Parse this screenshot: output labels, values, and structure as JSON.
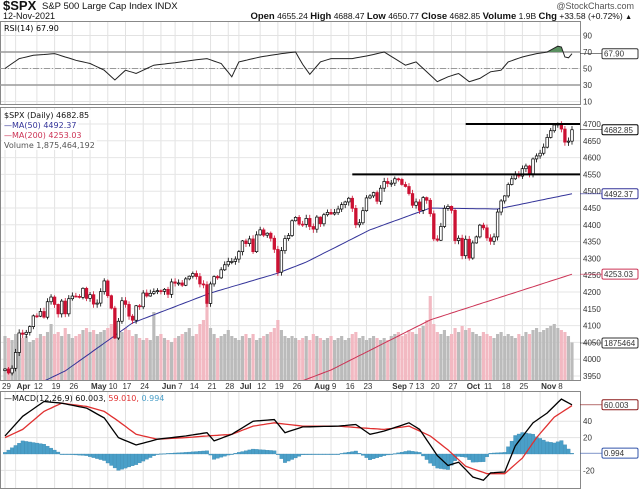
{
  "header": {
    "symbol": "$SPX",
    "name": "S&P 500 Large Cap Index",
    "exchange": "INDX",
    "watermark": "@StockCharts.com",
    "date": "12-Nov-2021",
    "open_label": "Open",
    "open": "4655.24",
    "high_label": "High",
    "high": "4688.47",
    "low_label": "Low",
    "low": "4650.77",
    "close_label": "Close",
    "close": "4682.85",
    "volume_label": "Volume",
    "volume": "1.9B",
    "chg_label": "Chg",
    "chg": "+33.58 (+0.72%)",
    "chg_icon": "up-triangle-icon"
  },
  "colors": {
    "up": "#ffffff",
    "down": "#cc1133",
    "ma50": "#333399",
    "ma200": "#cc3355",
    "vol_up": "#bbbbbb",
    "vol_down": "#f2b9c2",
    "macd": "#000000",
    "signal": "#e03030",
    "hist": "#4a9fc8",
    "rsi_over": "#5a9060"
  },
  "chart_data": [
    {
      "type": "line",
      "panel": "rsi",
      "legend": "RSI(14) 67.90",
      "last_label": "67.90",
      "yticks": [
        10,
        30,
        50,
        70,
        90
      ],
      "reference_lines": [
        30,
        50,
        70
      ],
      "points": [
        [
          0,
          50
        ],
        [
          4,
          62
        ],
        [
          8,
          66
        ],
        [
          14,
          68
        ],
        [
          20,
          60
        ],
        [
          24,
          56
        ],
        [
          28,
          48
        ],
        [
          31,
          36
        ],
        [
          34,
          48
        ],
        [
          37,
          44
        ],
        [
          42,
          54
        ],
        [
          48,
          57
        ],
        [
          53,
          60
        ],
        [
          57,
          62
        ],
        [
          61,
          56
        ],
        [
          64,
          40
        ],
        [
          66,
          58
        ],
        [
          72,
          64
        ],
        [
          78,
          68
        ],
        [
          82,
          70
        ],
        [
          84,
          55
        ],
        [
          86,
          43
        ],
        [
          89,
          58
        ],
        [
          92,
          62
        ],
        [
          98,
          62
        ],
        [
          103,
          66
        ],
        [
          107,
          70
        ],
        [
          110,
          62
        ],
        [
          113,
          54
        ],
        [
          116,
          58
        ],
        [
          119,
          46
        ],
        [
          122,
          34
        ],
        [
          125,
          40
        ],
        [
          128,
          44
        ],
        [
          131,
          34
        ],
        [
          134,
          38
        ],
        [
          137,
          46
        ],
        [
          140,
          48
        ],
        [
          142,
          58
        ],
        [
          146,
          64
        ],
        [
          150,
          68
        ],
        [
          153,
          70
        ],
        [
          156,
          77
        ],
        [
          157,
          76
        ],
        [
          158,
          64
        ],
        [
          159,
          63
        ],
        [
          160,
          67.9
        ]
      ]
    },
    {
      "type": "candlestick",
      "panel": "price",
      "legend": "$SPX (Daily) 4682.85",
      "ma50_legend": "MA(50) 4492.37",
      "ma200_legend": "MA(200) 4253.03",
      "volume_legend": "Volume 1,875,464,192",
      "last_labels": {
        "close": "4682.85",
        "ma50": "4492.37",
        "ma200": "4253.03",
        "volume": "1875464"
      },
      "yticks": [
        3950,
        4000,
        4050,
        4100,
        4150,
        4200,
        4250,
        4300,
        4350,
        4400,
        4450,
        4500,
        4550,
        4600,
        4650,
        4700
      ],
      "ylim": [
        3940,
        4745
      ],
      "closes": [
        3971,
        3959,
        3973,
        4020,
        4078,
        4074,
        4080,
        4097,
        4129,
        4128,
        4142,
        4125,
        4171,
        4185,
        4163,
        4135,
        4173,
        4135,
        4180,
        4188,
        4187,
        4184,
        4211,
        4181,
        4192,
        4164,
        4167,
        4201,
        4233,
        4189,
        4152,
        4063,
        4113,
        4174,
        4163,
        4128,
        4116,
        4159,
        4156,
        4197,
        4188,
        4196,
        4201,
        4204,
        4202,
        4208,
        4193,
        4230,
        4226,
        4227,
        4220,
        4239,
        4247,
        4255,
        4246,
        4224,
        4222,
        4166,
        4224,
        4246,
        4242,
        4266,
        4281,
        4291,
        4291,
        4298,
        4320,
        4352,
        4344,
        4358,
        4320,
        4370,
        4385,
        4369,
        4375,
        4360,
        4327,
        4259,
        4323,
        4359,
        4368,
        4412,
        4422,
        4402,
        4401,
        4419,
        4395,
        4387,
        4423,
        4403,
        4430,
        4437,
        4432,
        4436,
        4447,
        4460,
        4468,
        4479,
        4449,
        4400,
        4406,
        4442,
        4480,
        4486,
        4496,
        4470,
        4509,
        4529,
        4523,
        4524,
        4537,
        4535,
        4520,
        4514,
        4493,
        4458,
        4468,
        4443,
        4481,
        4473,
        4433,
        4358,
        4354,
        4395,
        4449,
        4455,
        4443,
        4353,
        4360,
        4308,
        4357,
        4301,
        4346,
        4364,
        4399,
        4391,
        4361,
        4351,
        4364,
        4438,
        4471,
        4486,
        4520,
        4537,
        4549,
        4545,
        4567,
        4575,
        4552,
        4596,
        4605,
        4613,
        4631,
        4660,
        4680,
        4697,
        4702,
        4685,
        4646,
        4649,
        4682.85
      ],
      "ma50_points": [
        [
          0,
          3880
        ],
        [
          17,
          3965
        ],
        [
          36,
          4108
        ],
        [
          58,
          4197
        ],
        [
          77,
          4256
        ],
        [
          85,
          4289
        ],
        [
          103,
          4385
        ],
        [
          120,
          4450
        ],
        [
          139,
          4447
        ],
        [
          160,
          4492.37
        ]
      ],
      "ma200_points": [
        [
          80,
          3920
        ],
        [
          92,
          3968
        ],
        [
          120,
          4117
        ],
        [
          160,
          4253.03
        ]
      ],
      "support_lines": [
        {
          "value": 4550,
          "from_index": 98
        },
        {
          "value": 4700,
          "from_index": 130
        }
      ],
      "volume_billions": [
        2.2,
        2.1,
        2.0,
        2.3,
        2.0,
        2.1,
        2.2,
        1.9,
        2.0,
        2.1,
        2.3,
        2.2,
        2.4,
        2.8,
        2.3,
        2.4,
        2.2,
        2.6,
        2.3,
        2.1,
        2.2,
        2.3,
        2.5,
        2.6,
        2.4,
        2.5,
        2.3,
        2.4,
        2.5,
        2.6,
        2.8,
        3.0,
        2.7,
        2.4,
        2.6,
        2.5,
        2.2,
        2.3,
        2.1,
        2.0,
        2.1,
        2.0,
        3.4,
        2.2,
        2.3,
        2.1,
        2.0,
        1.9,
        2.1,
        2.2,
        2.3,
        2.4,
        2.6,
        2.2,
        2.3,
        2.8,
        3.0,
        4.0,
        2.6,
        2.3,
        2.1,
        2.2,
        2.3,
        2.5,
        2.2,
        2.1,
        2.0,
        2.2,
        2.3,
        2.1,
        2.3,
        2.0,
        2.1,
        2.2,
        2.3,
        2.4,
        2.6,
        3.0,
        2.5,
        2.2,
        2.1,
        2.2,
        2.1,
        2.0,
        2.1,
        2.2,
        2.0,
        2.3,
        2.2,
        2.1,
        2.0,
        2.1,
        2.2,
        2.0,
        2.1,
        2.2,
        2.0,
        2.1,
        2.3,
        2.4,
        2.1,
        2.2,
        2.0,
        2.1,
        2.2,
        2.1,
        2.0,
        2.1,
        2.0,
        2.2,
        2.3,
        2.4,
        2.2,
        2.3,
        2.5,
        2.4,
        2.3,
        2.6,
        2.7,
        3.0,
        4.2,
        2.8,
        2.4,
        2.3,
        2.5,
        2.2,
        2.3,
        2.6,
        2.4,
        2.7,
        2.5,
        2.6,
        2.4,
        2.3,
        2.2,
        2.4,
        2.3,
        2.2,
        2.1,
        2.3,
        2.4,
        2.2,
        2.3,
        2.2,
        2.1,
        2.3,
        2.2,
        2.4,
        2.3,
        2.5,
        2.6,
        2.4,
        2.5,
        2.6,
        2.7,
        2.8,
        2.6,
        2.5,
        2.4,
        2.2,
        1.875
      ]
    },
    {
      "type": "line",
      "panel": "macd",
      "legend": "MACD(12,26,9) 60.003,",
      "signal_legend": "59.010,",
      "hist_legend": "0.994",
      "last_labels": {
        "macd": "60.003",
        "hist": "0.994"
      },
      "yticks": [
        -20,
        20,
        40
      ],
      "macd_points": [
        [
          0,
          22
        ],
        [
          5,
          46
        ],
        [
          11,
          64
        ],
        [
          16,
          62
        ],
        [
          23,
          56
        ],
        [
          28,
          44
        ],
        [
          32,
          20
        ],
        [
          37,
          11
        ],
        [
          43,
          18
        ],
        [
          51,
          22
        ],
        [
          57,
          26
        ],
        [
          59,
          16
        ],
        [
          64,
          24
        ],
        [
          70,
          40
        ],
        [
          76,
          42
        ],
        [
          79,
          26
        ],
        [
          84,
          33
        ],
        [
          94,
          34
        ],
        [
          99,
          36
        ],
        [
          103,
          24
        ],
        [
          107,
          28
        ],
        [
          114,
          38
        ],
        [
          117,
          30
        ],
        [
          122,
          -2
        ],
        [
          125,
          -14
        ],
        [
          128,
          -10
        ],
        [
          132,
          -28
        ],
        [
          135,
          -32
        ],
        [
          137,
          -23
        ],
        [
          141,
          -22
        ],
        [
          144,
          10
        ],
        [
          149,
          38
        ],
        [
          153,
          50
        ],
        [
          157,
          67
        ],
        [
          160,
          60.003
        ]
      ],
      "signal_points": [
        [
          0,
          20
        ],
        [
          5,
          30
        ],
        [
          11,
          52
        ],
        [
          16,
          62
        ],
        [
          23,
          58
        ],
        [
          28,
          52
        ],
        [
          32,
          40
        ],
        [
          37,
          24
        ],
        [
          43,
          18
        ],
        [
          51,
          20
        ],
        [
          57,
          22
        ],
        [
          64,
          24
        ],
        [
          70,
          34
        ],
        [
          76,
          38
        ],
        [
          84,
          34
        ],
        [
          94,
          34
        ],
        [
          100,
          32
        ],
        [
          107,
          30
        ],
        [
          114,
          34
        ],
        [
          120,
          22
        ],
        [
          125,
          5
        ],
        [
          130,
          -15
        ],
        [
          136,
          -24
        ],
        [
          141,
          -24
        ],
        [
          146,
          -5
        ],
        [
          150,
          20
        ],
        [
          155,
          45
        ],
        [
          160,
          59.01
        ]
      ]
    }
  ],
  "x_axis": {
    "labels": [
      {
        "text": "29",
        "i": 0
      },
      {
        "text": "Apr",
        "i": 3,
        "bold": true
      },
      {
        "text": "12",
        "i": 9
      },
      {
        "text": "19",
        "i": 14
      },
      {
        "text": "26",
        "i": 19
      },
      {
        "text": "May",
        "i": 24,
        "bold": true
      },
      {
        "text": "10",
        "i": 29
      },
      {
        "text": "17",
        "i": 34
      },
      {
        "text": "24",
        "i": 39
      },
      {
        "text": "Jun",
        "i": 44,
        "bold": true
      },
      {
        "text": "7",
        "i": 48
      },
      {
        "text": "14",
        "i": 53
      },
      {
        "text": "21",
        "i": 58
      },
      {
        "text": "28",
        "i": 63
      },
      {
        "text": "Jul",
        "i": 66,
        "bold": true
      },
      {
        "text": "12",
        "i": 72
      },
      {
        "text": "19",
        "i": 77
      },
      {
        "text": "26",
        "i": 82
      },
      {
        "text": "Aug",
        "i": 87,
        "bold": true
      },
      {
        "text": "9",
        "i": 92
      },
      {
        "text": "16",
        "i": 97
      },
      {
        "text": "23",
        "i": 102
      },
      {
        "text": "Sep",
        "i": 109,
        "bold": true
      },
      {
        "text": "7",
        "i": 112
      },
      {
        "text": "13",
        "i": 116
      },
      {
        "text": "20",
        "i": 121
      },
      {
        "text": "27",
        "i": 126
      },
      {
        "text": "Oct",
        "i": 130,
        "bold": true
      },
      {
        "text": "11",
        "i": 136
      },
      {
        "text": "18",
        "i": 141
      },
      {
        "text": "25",
        "i": 146
      },
      {
        "text": "Nov",
        "i": 151,
        "bold": true
      },
      {
        "text": "8",
        "i": 156
      }
    ]
  }
}
